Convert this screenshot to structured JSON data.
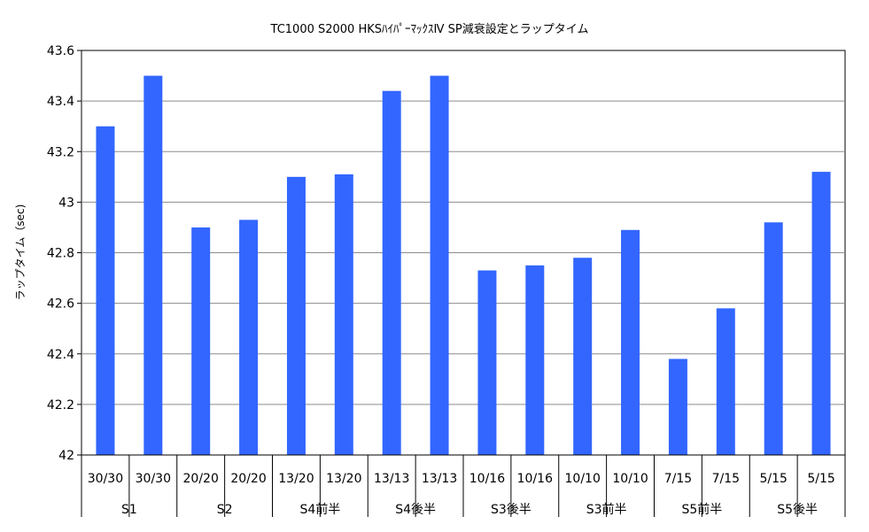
{
  "chart_data": {
    "type": "bar",
    "title": "TC1000 S2000 HKSﾊｲﾊﾟｰﾏｯｸｽⅣ SP減衰設定とラップタイム",
    "xlabel": "",
    "ylabel": "ラップタイム（sec)",
    "ylim": [
      42,
      43.6
    ],
    "yticks": [
      42,
      42.2,
      42.4,
      42.6,
      42.8,
      43,
      43.2,
      43.4,
      43.6
    ],
    "ytick_labels": [
      "42",
      "42.2",
      "42.4",
      "42.6",
      "42.8",
      "43",
      "43.2",
      "43.4",
      "43.6"
    ],
    "grid": true,
    "legend": "none",
    "bar_color": "#3366ff",
    "categories": [
      "30/30",
      "30/30",
      "20/20",
      "20/20",
      "13/20",
      "13/20",
      "13/13",
      "13/13",
      "10/16",
      "10/16",
      "10/10",
      "10/10",
      "7/15",
      "7/15",
      "5/15",
      "5/15"
    ],
    "groups": [
      "S1",
      "S2",
      "S4前半",
      "S4後半",
      "S3後半",
      "S3前半",
      "S5前半",
      "S5後半"
    ],
    "values": [
      43.3,
      43.5,
      42.9,
      42.93,
      43.1,
      43.11,
      43.44,
      43.5,
      42.73,
      42.75,
      42.78,
      42.89,
      42.38,
      42.58,
      42.92,
      43.12
    ]
  }
}
